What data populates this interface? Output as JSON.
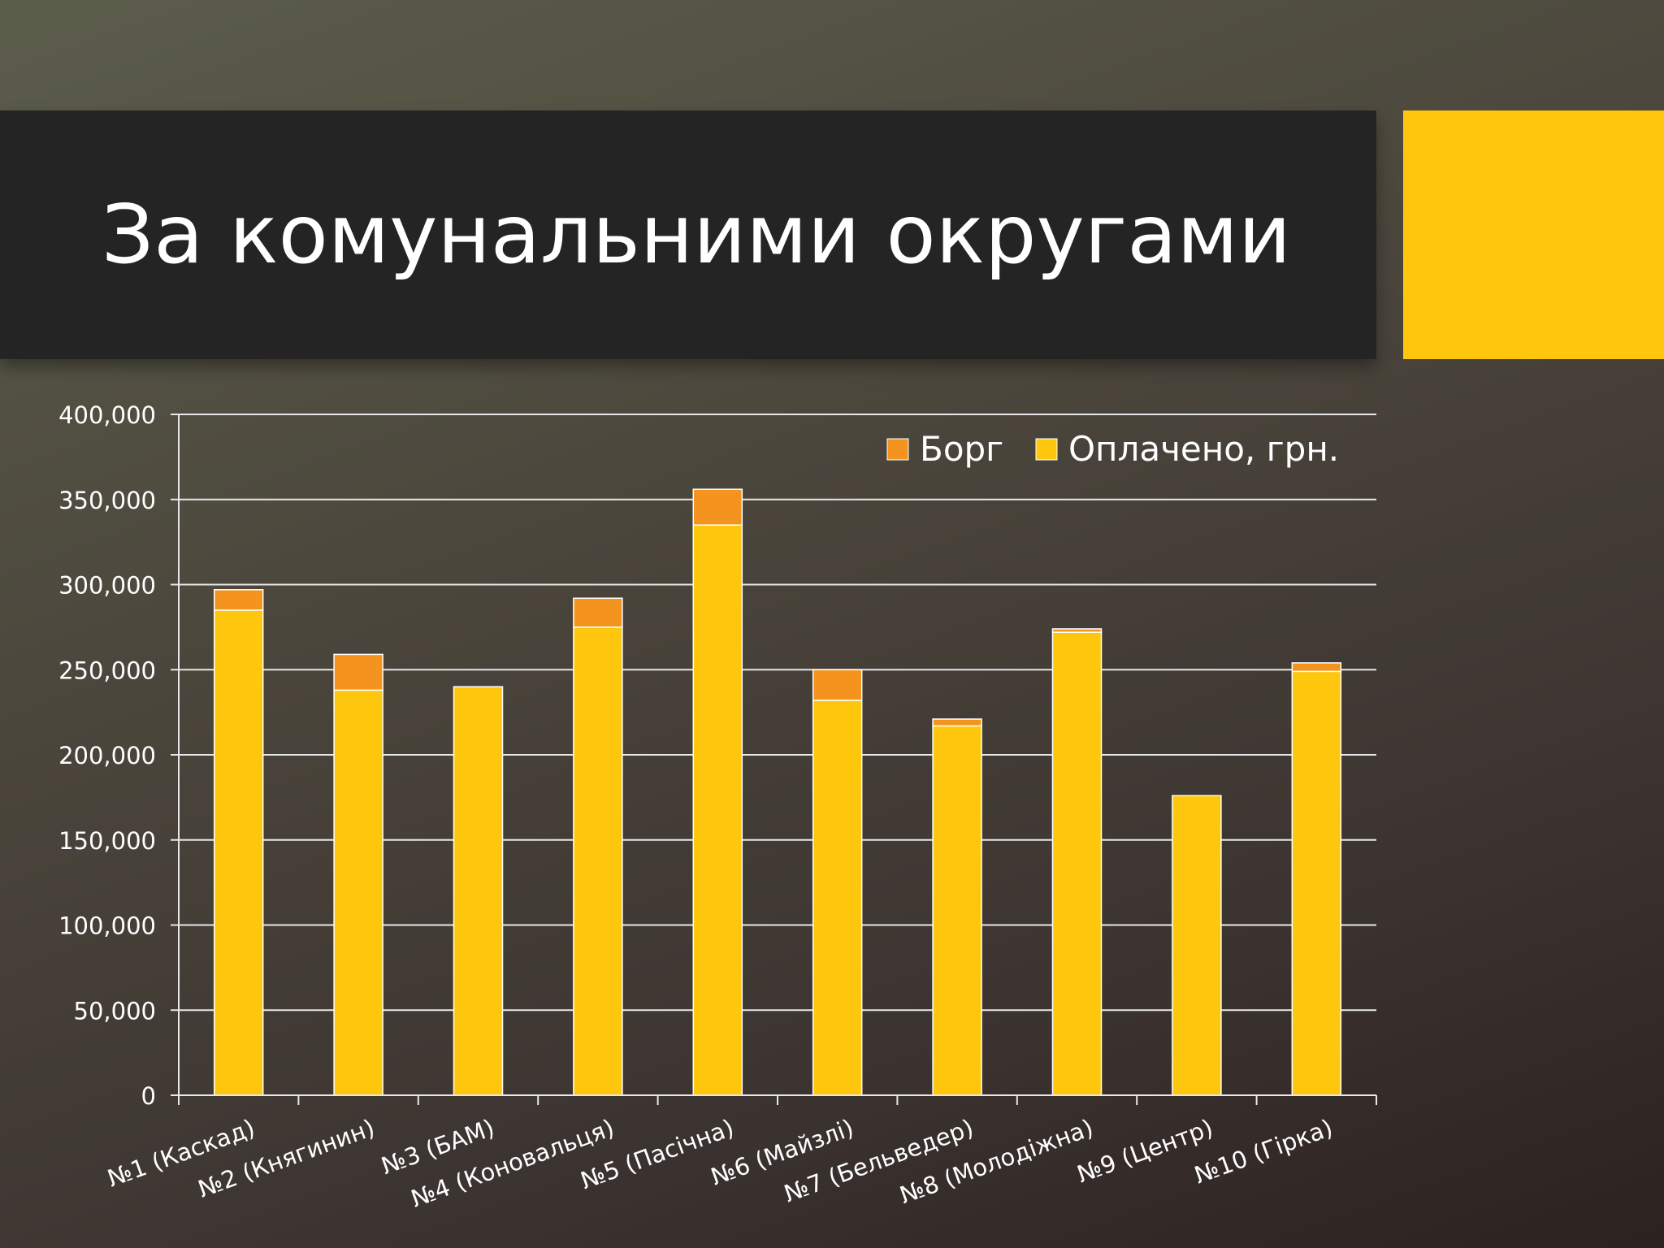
{
  "slide": {
    "title": "За комунальними округами",
    "accent_color": "#FEC70D",
    "band_color": "#242424"
  },
  "chart_data": {
    "type": "bar",
    "stacked": true,
    "categories": [
      "№1 (Каскад)",
      "№2 (Княгинин)",
      "№3 (БАМ)",
      "№4 (Коновальця)",
      "№5 (Пасічна)",
      "№6 (Майзлі)",
      "№7 (Бельведер)",
      "№8 (Молодіжна)",
      "№9 (Центр)",
      "№10 (Гірка)"
    ],
    "series": [
      {
        "name": "Оплачено, грн.",
        "color": "#FEC70D",
        "values": [
          285000,
          238000,
          240000,
          275000,
          335000,
          232000,
          217000,
          272000,
          176000,
          249000
        ]
      },
      {
        "name": "Борг",
        "color": "#F5931F",
        "values": [
          12000,
          21000,
          0,
          17000,
          21000,
          18000,
          4000,
          2000,
          0,
          5000
        ]
      }
    ],
    "ylim": [
      0,
      400000
    ],
    "yticks": [
      0,
      50000,
      100000,
      150000,
      200000,
      250000,
      300000,
      350000,
      400000
    ],
    "ytick_labels": [
      "0",
      "50,000",
      "100,000",
      "150,000",
      "200,000",
      "250,000",
      "300,000",
      "350,000",
      "400,000"
    ],
    "legend": [
      {
        "name": "Борг",
        "color": "#F5931F"
      },
      {
        "name": "Оплачено, грн.",
        "color": "#FEC70D"
      }
    ],
    "legend_position": "top-right",
    "grid": true
  }
}
